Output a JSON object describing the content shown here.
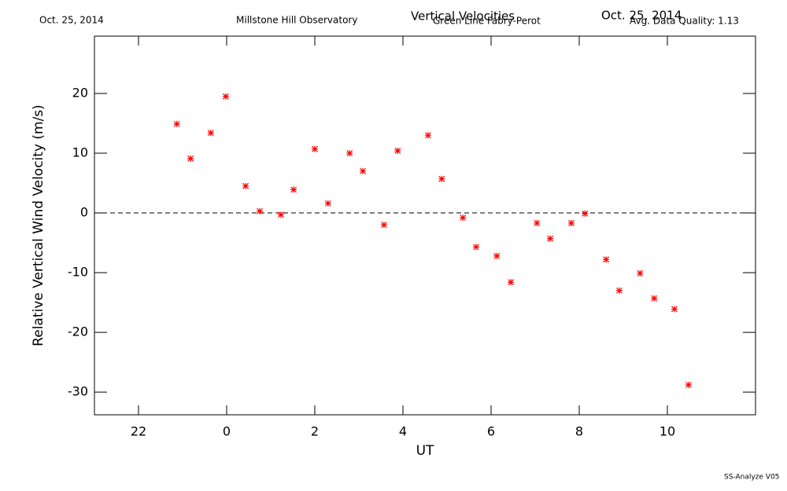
{
  "chart_data": {
    "type": "scatter",
    "header_left": "Oct. 25, 2014",
    "observatory": "Millstone Hill Observatory",
    "title": "Vertical Velocities",
    "subtitle": "Green Line Fabry-Perot",
    "header_date": "Oct. 25, 2014",
    "quality": "Avg. Data Quality: 1.13",
    "footer": "SS-Analyze V05",
    "xlabel": "UT",
    "ylabel": "Relative Vertical Wind Velocity (m/s)",
    "xlim": [
      -3,
      12
    ],
    "ylim": [
      -33.8,
      29.6
    ],
    "xticks": [
      {
        "value": -2,
        "label": "22"
      },
      0,
      2,
      4,
      6,
      8,
      10
    ],
    "yticks": [
      -30,
      -20,
      -10,
      0,
      10,
      20
    ],
    "color": "#ff0000",
    "x": [
      -1.13,
      -0.82,
      -0.36,
      -0.02,
      0.43,
      0.75,
      1.23,
      1.52,
      2.0,
      2.3,
      2.79,
      3.09,
      3.57,
      3.88,
      4.57,
      4.88,
      5.36,
      5.66,
      6.13,
      6.45,
      7.04,
      7.34,
      7.82,
      8.13,
      8.61,
      8.91,
      9.38,
      9.7,
      10.16,
      10.48
    ],
    "values": [
      14.9,
      9.1,
      13.4,
      19.5,
      4.5,
      0.3,
      -0.3,
      3.9,
      10.7,
      1.6,
      10.0,
      7.0,
      -2.0,
      10.4,
      13.0,
      5.7,
      -0.8,
      -5.7,
      -7.2,
      -11.6,
      -1.7,
      -4.3,
      -1.7,
      -0.1,
      -7.8,
      -13.0,
      -10.1,
      -14.3,
      -16.1,
      -28.8
    ]
  }
}
